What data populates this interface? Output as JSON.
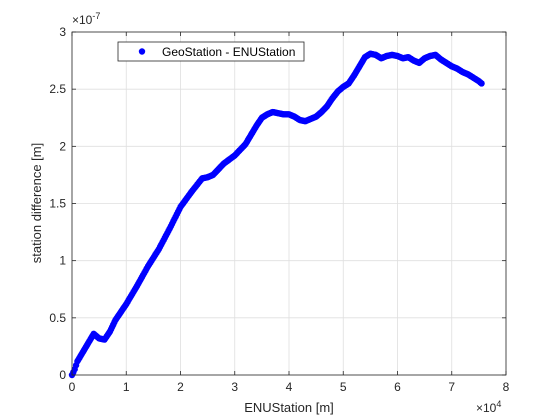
{
  "chart_data": {
    "type": "scatter",
    "xlabel": "ENUStation [m]",
    "ylabel": "station difference [m]",
    "x_exponent_label": "×10",
    "x_exponent_power": "4",
    "y_exponent_label": "×10",
    "y_exponent_power": "-7",
    "xlim": [
      0,
      80000
    ],
    "ylim": [
      0,
      3e-07
    ],
    "x_ticks": [
      0,
      10000,
      20000,
      30000,
      40000,
      50000,
      60000,
      70000,
      80000
    ],
    "x_tick_labels": [
      "0",
      "1",
      "2",
      "3",
      "4",
      "5",
      "6",
      "7",
      "8"
    ],
    "y_ticks": [
      0,
      5e-08,
      1e-07,
      1.5e-07,
      2e-07,
      2.5e-07,
      3e-07
    ],
    "y_tick_labels": [
      "0",
      "0.5",
      "1",
      "1.5",
      "2",
      "2.5",
      "3"
    ],
    "grid": true,
    "legend_position": "top-left",
    "colors": {
      "series": "#0000ff",
      "axis": "#262626",
      "grid": "#dfdfdf"
    },
    "series": [
      {
        "name": "GeoStation - ENUStation",
        "x": [
          0,
          500,
          1000,
          2000,
          3000,
          4000,
          5000,
          6000,
          7000,
          8000,
          9000,
          10000,
          12000,
          14000,
          16000,
          18000,
          20000,
          22000,
          24000,
          25000,
          26000,
          27000,
          28000,
          30000,
          32000,
          33000,
          34000,
          35000,
          36000,
          37000,
          38000,
          39000,
          40000,
          41000,
          42000,
          43000,
          44000,
          45000,
          46000,
          47000,
          48000,
          49000,
          50000,
          51000,
          52000,
          53000,
          54000,
          55000,
          56000,
          57000,
          58000,
          59000,
          60000,
          61000,
          62000,
          63000,
          64000,
          65000,
          66000,
          67000,
          68000,
          69000,
          70000,
          71000,
          72000,
          73000,
          74000,
          75000,
          75500
        ],
        "y": [
          0,
          5e-09,
          1.2e-08,
          2e-08,
          2.8e-08,
          3.6e-08,
          3.2e-08,
          3.1e-08,
          3.8e-08,
          4.8e-08,
          5.5e-08,
          6.2e-08,
          7.8e-08,
          9.5e-08,
          1.1e-07,
          1.28e-07,
          1.47e-07,
          1.6e-07,
          1.72e-07,
          1.73e-07,
          1.75e-07,
          1.8e-07,
          1.85e-07,
          1.92e-07,
          2.02e-07,
          2.1e-07,
          2.18e-07,
          2.25e-07,
          2.28e-07,
          2.3e-07,
          2.29e-07,
          2.28e-07,
          2.28e-07,
          2.26e-07,
          2.23e-07,
          2.22e-07,
          2.24e-07,
          2.26e-07,
          2.3e-07,
          2.35e-07,
          2.42e-07,
          2.48e-07,
          2.52e-07,
          2.55e-07,
          2.62e-07,
          2.7e-07,
          2.78e-07,
          2.81e-07,
          2.8e-07,
          2.77e-07,
          2.79e-07,
          2.8e-07,
          2.79e-07,
          2.77e-07,
          2.78e-07,
          2.75e-07,
          2.73e-07,
          2.77e-07,
          2.79e-07,
          2.8e-07,
          2.76e-07,
          2.73e-07,
          2.7e-07,
          2.68e-07,
          2.65e-07,
          2.63e-07,
          2.6e-07,
          2.57e-07,
          2.55e-07
        ]
      }
    ]
  }
}
